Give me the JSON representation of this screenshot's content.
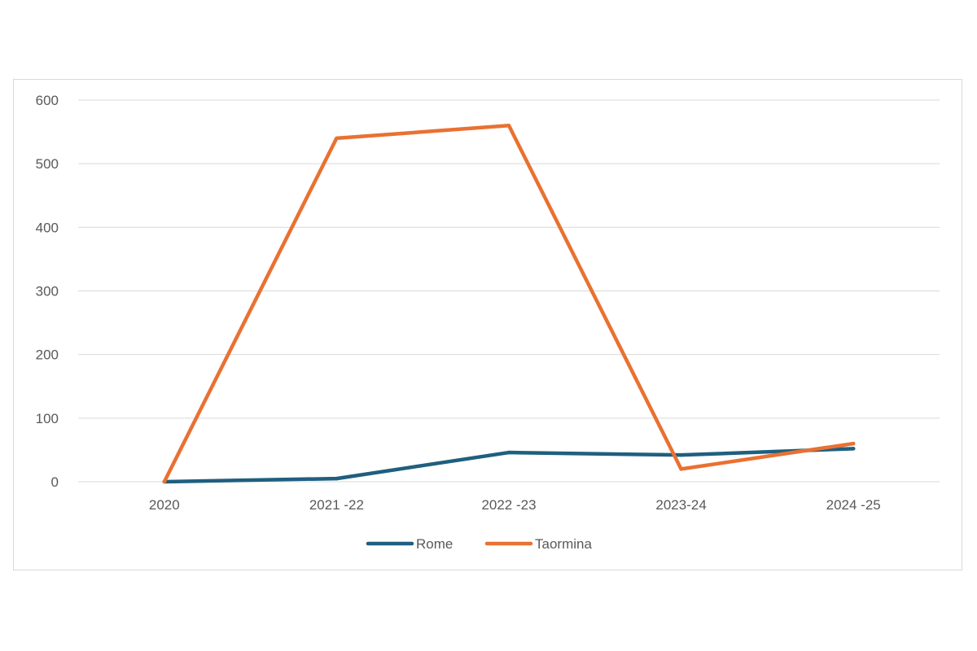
{
  "chart_data": {
    "type": "line",
    "title": "",
    "xlabel": "",
    "ylabel": "",
    "categories": [
      "2020",
      "2021 -22",
      "2022 -23",
      "2023-24",
      "2024 -25"
    ],
    "ylim": [
      0,
      600
    ],
    "yticks": [
      0,
      100,
      200,
      300,
      400,
      500,
      600
    ],
    "grid": true,
    "legend": "bottom",
    "series": [
      {
        "name": "Rome",
        "color": "#1f5f7f",
        "values": [
          0,
          5,
          46,
          42,
          52
        ]
      },
      {
        "name": "Taormina",
        "color": "#e97132",
        "values": [
          0,
          540,
          560,
          20,
          60
        ]
      }
    ]
  }
}
